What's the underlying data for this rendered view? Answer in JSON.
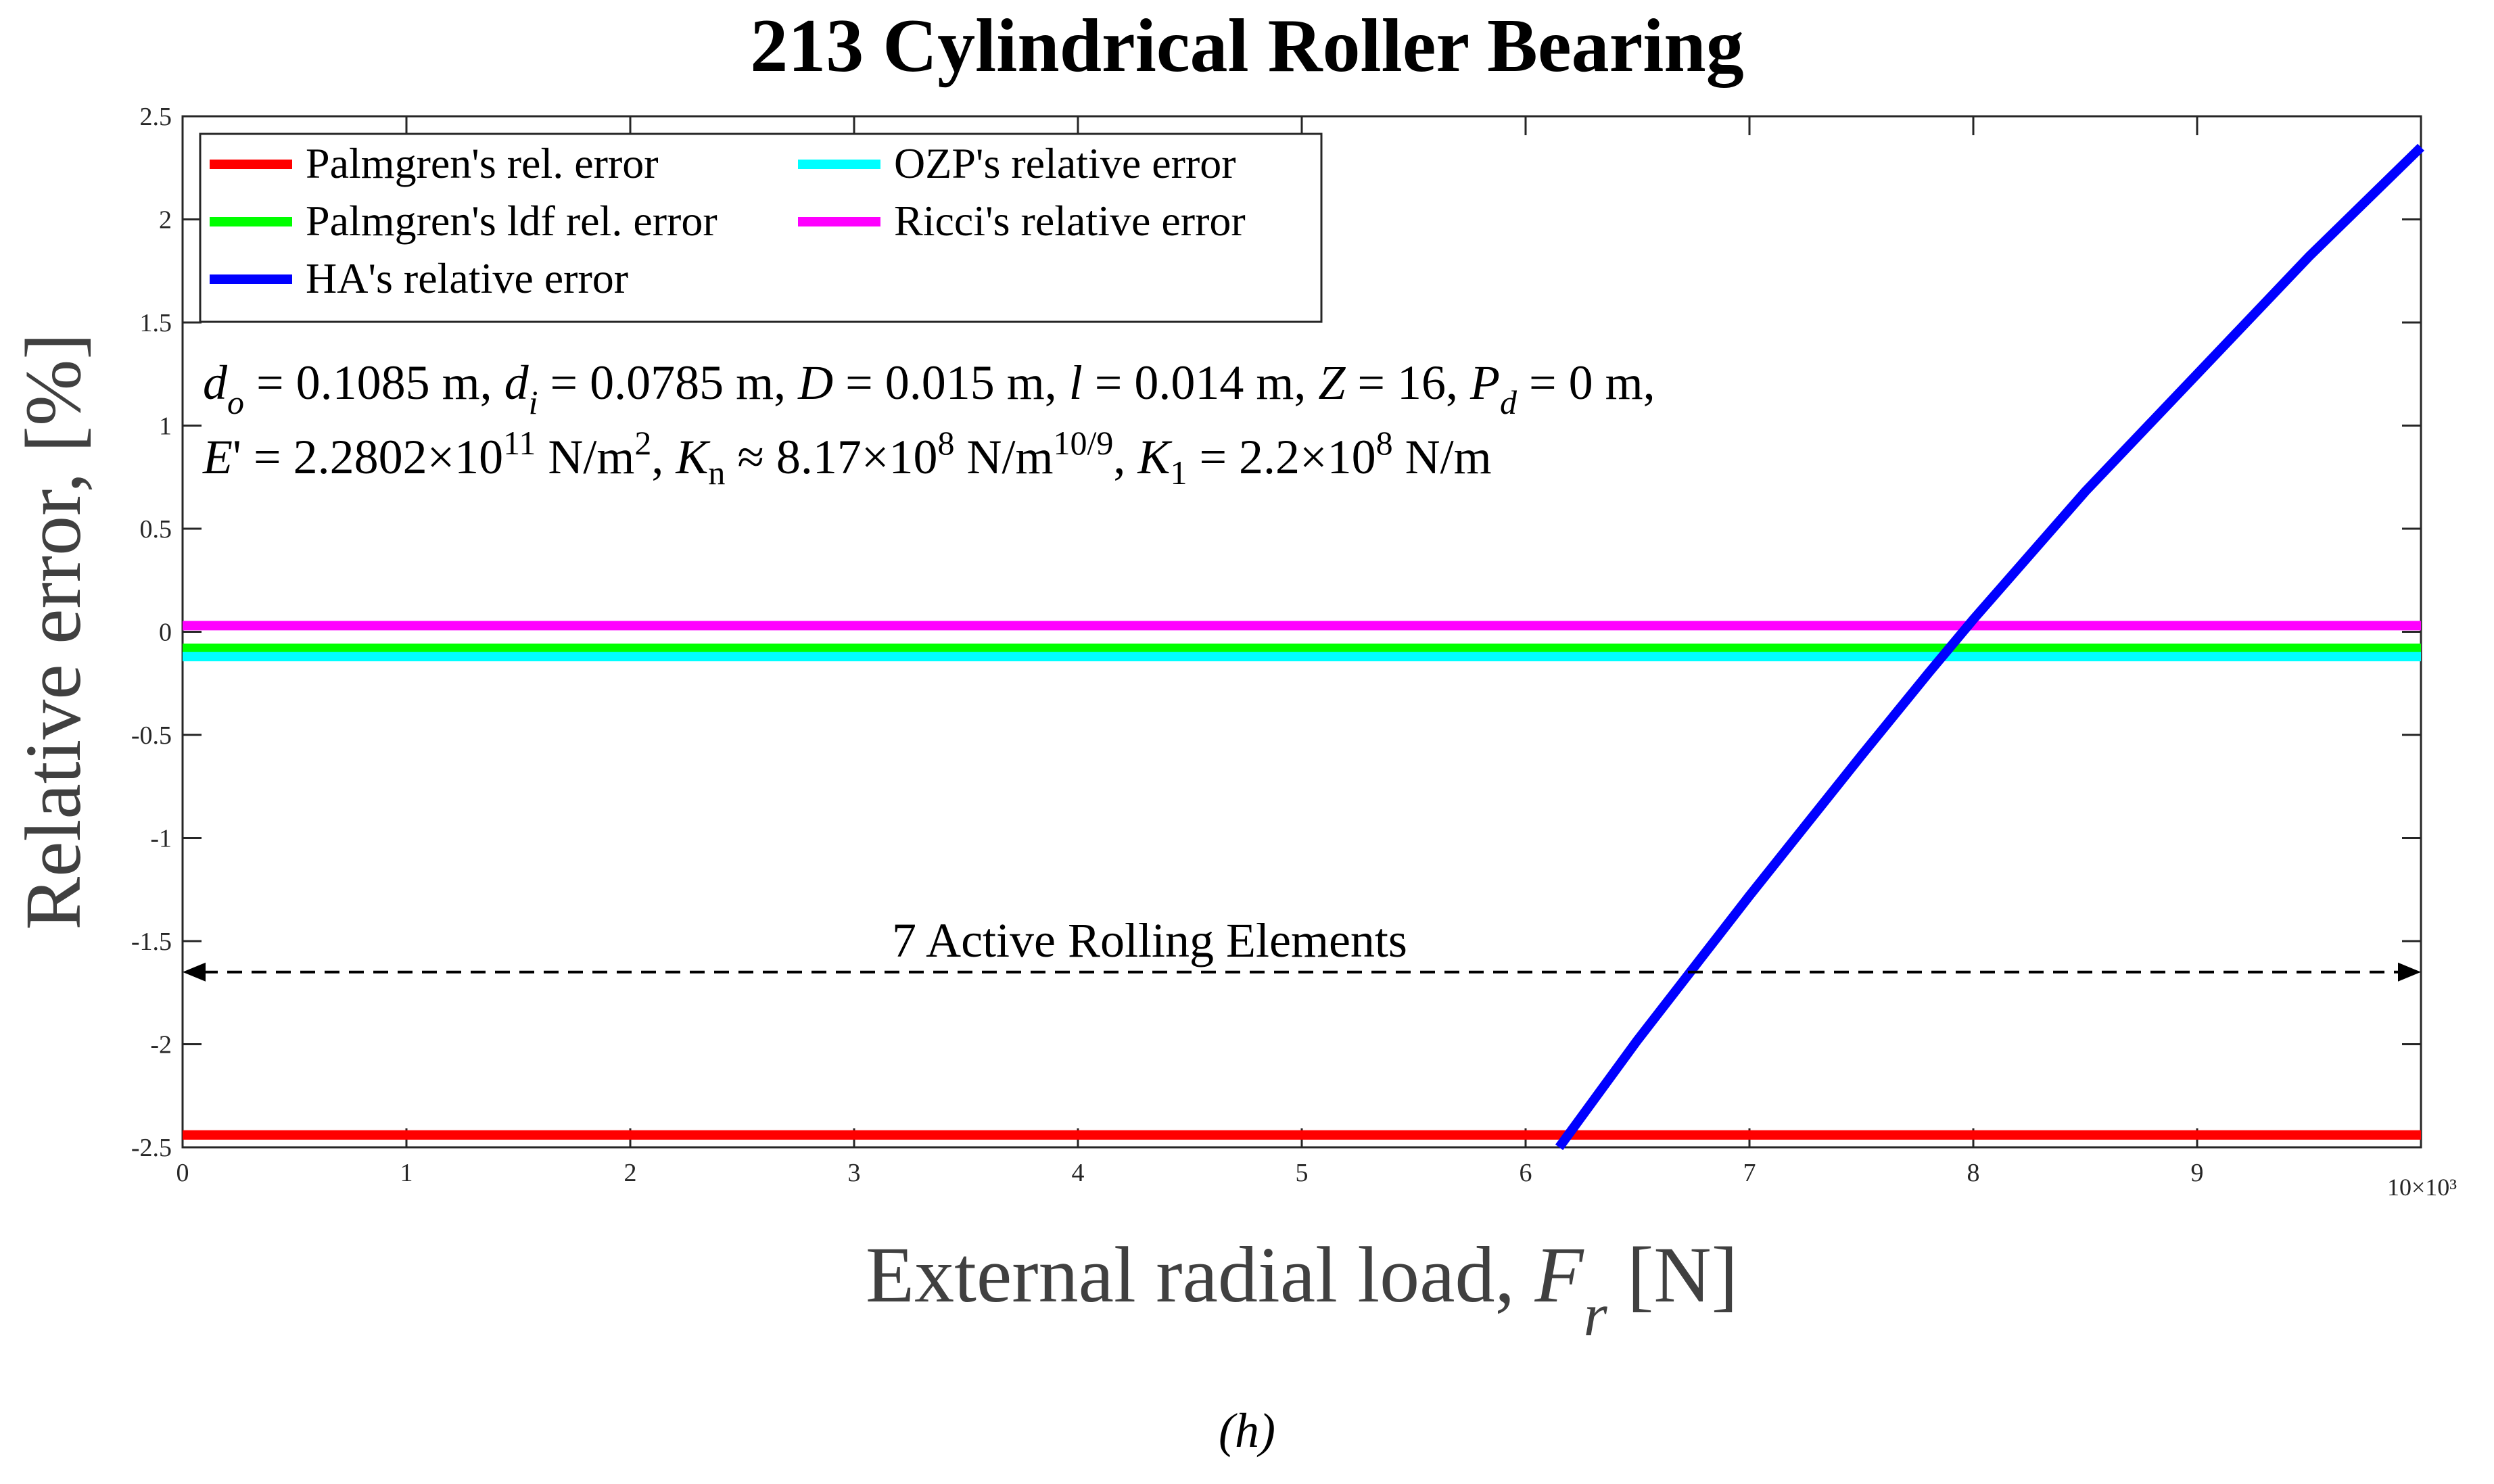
{
  "chart_data": {
    "type": "line",
    "title": "213 Cylindrical Roller Bearing",
    "xlabel": "External radial load, F_r  [N]",
    "xlabel_parts": {
      "pre": "External radial load, ",
      "var": "F",
      "sub": "r",
      "post": "  [N]"
    },
    "ylabel": "Relative error, [%]",
    "xlim": [
      0,
      10000
    ],
    "ylim": [
      -2.5,
      2.5
    ],
    "x_ticks": [
      0,
      1,
      2,
      3,
      4,
      5,
      6,
      7,
      8,
      9,
      10
    ],
    "x_tick_labels": [
      "0",
      "1",
      "2",
      "3",
      "4",
      "5",
      "6",
      "7",
      "8",
      "9",
      ""
    ],
    "x_exponent_label": "10×10³",
    "y_ticks": [
      -2.5,
      -2,
      -1.5,
      -1,
      -0.5,
      0,
      0.5,
      1,
      1.5,
      2,
      2.5
    ],
    "y_tick_labels": [
      "-2.5",
      "-2",
      "-1.5",
      "-1",
      "-0.5",
      "0",
      "0.5",
      "1",
      "1.5",
      "2",
      "2.5"
    ],
    "grid": false,
    "legend_position": "top-left",
    "series": [
      {
        "name": "Palmgren's rel. error",
        "color": "#ff0000",
        "x": [
          0,
          10000
        ],
        "y": [
          -2.44,
          -2.44
        ]
      },
      {
        "name": "Palmgren's ldf rel. error",
        "color": "#00ff00",
        "x": [
          0,
          10000
        ],
        "y": [
          -0.08,
          -0.08
        ]
      },
      {
        "name": "HA's relative error",
        "color": "#0000ff",
        "x": [
          6150,
          6500,
          7000,
          7500,
          7800,
          8000,
          8500,
          9000,
          9500,
          10000
        ],
        "y": [
          -2.5,
          -1.98,
          -1.28,
          -0.6,
          -0.2,
          0.06,
          0.68,
          1.25,
          1.82,
          2.35
        ]
      },
      {
        "name": "OZP's relative error",
        "color": "#00ffff",
        "x": [
          0,
          10000
        ],
        "y": [
          -0.12,
          -0.12
        ]
      },
      {
        "name": "Ricci's relative error",
        "color": "#ff00ff",
        "x": [
          0,
          10000
        ],
        "y": [
          0.03,
          0.03
        ]
      }
    ],
    "annotations": {
      "params_line1": "d_o = 0.1085 m, d_i = 0.0785 m, D = 0.015 m, l = 0.014 m, Z = 16, P_d = 0 m,",
      "params_line2": "E' = 2.2802×10^11 N/m^2, K_n ≈ 8.17×10^8 N/m^10/9, K_1 = 2.2×10^8 N/m",
      "active_elements": {
        "text": "7 Active Rolling Elements",
        "y": -1.65,
        "x_range": [
          0,
          10000
        ]
      }
    },
    "panel_label": "(h)"
  }
}
